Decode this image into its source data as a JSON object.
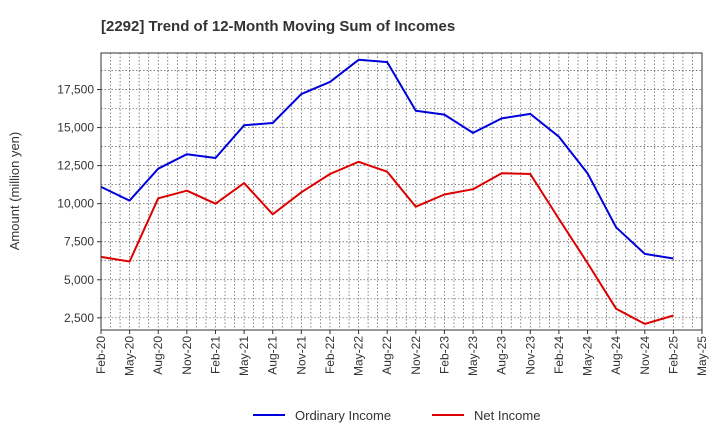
{
  "chart_data": {
    "type": "line",
    "title": "[2292]  Trend of 12-Month Moving Sum of Incomes",
    "xlabel": "",
    "ylabel": "Amount (million yen)",
    "categories": [
      "Feb-20",
      "May-20",
      "Aug-20",
      "Nov-20",
      "Feb-21",
      "May-21",
      "Aug-21",
      "Nov-21",
      "Feb-22",
      "May-22",
      "Aug-22",
      "Nov-22",
      "Feb-23",
      "May-23",
      "Aug-23",
      "Nov-23",
      "Feb-24",
      "May-24",
      "Aug-24",
      "Nov-24",
      "Feb-25",
      "May-25"
    ],
    "y_ticks": [
      2500,
      5000,
      7500,
      10000,
      12500,
      15000,
      17500
    ],
    "y_tick_labels": [
      "2,500",
      "5,000",
      "7,500",
      "10,000",
      "12,500",
      "15,000",
      "17,500"
    ],
    "ylim": [
      1700,
      19900
    ],
    "grid": true,
    "legend_position": "bottom",
    "series": [
      {
        "name": "Ordinary Income",
        "color": "#0000dd",
        "values": [
          11100,
          10200,
          12300,
          13250,
          13000,
          15150,
          15300,
          17200,
          18000,
          19450,
          19300,
          16100,
          15850,
          14650,
          15600,
          15900,
          14400,
          12000,
          8450,
          6700,
          6400,
          null
        ]
      },
      {
        "name": "Net Income",
        "color": "#dd0000",
        "values": [
          6500,
          6200,
          10350,
          10850,
          10000,
          11350,
          9300,
          10750,
          11950,
          12750,
          12100,
          9800,
          10600,
          10950,
          12000,
          11950,
          9000,
          6100,
          3100,
          2100,
          2650,
          null
        ]
      }
    ]
  }
}
